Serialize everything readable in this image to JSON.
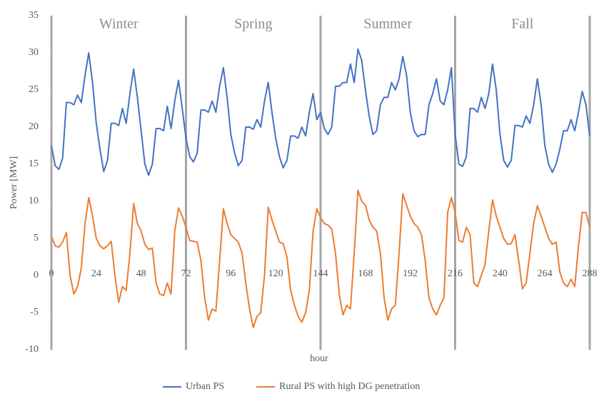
{
  "chart_data": {
    "type": "line",
    "xlabel": "hour",
    "ylabel": "Power [MW]",
    "seasons": [
      "Winter",
      "Spring",
      "Summer",
      "Fall"
    ],
    "dividers": [
      0,
      72,
      144,
      216,
      288
    ],
    "xlim": [
      0,
      288
    ],
    "xticks": [
      0,
      24,
      48,
      72,
      96,
      120,
      144,
      168,
      192,
      216,
      240,
      264,
      288
    ],
    "ylim": [
      -10,
      35
    ],
    "yticks": [
      -10,
      -5,
      0,
      5,
      10,
      15,
      20,
      25,
      30,
      35
    ],
    "x": [
      0,
      2,
      4,
      6,
      8,
      10,
      12,
      14,
      16,
      18,
      20,
      22,
      24,
      26,
      28,
      30,
      32,
      34,
      36,
      38,
      40,
      42,
      44,
      46,
      48,
      50,
      52,
      54,
      56,
      58,
      60,
      62,
      64,
      66,
      68,
      70,
      72,
      74,
      76,
      78,
      80,
      82,
      84,
      86,
      88,
      90,
      92,
      94,
      96,
      98,
      100,
      102,
      104,
      106,
      108,
      110,
      112,
      114,
      116,
      118,
      120,
      122,
      124,
      126,
      128,
      130,
      132,
      134,
      136,
      138,
      140,
      142,
      144,
      146,
      148,
      150,
      152,
      154,
      156,
      158,
      160,
      162,
      164,
      166,
      168,
      170,
      172,
      174,
      176,
      178,
      180,
      182,
      184,
      186,
      188,
      190,
      192,
      194,
      196,
      198,
      200,
      202,
      204,
      206,
      208,
      210,
      212,
      214,
      216,
      218,
      220,
      222,
      224,
      226,
      228,
      230,
      232,
      234,
      236,
      238,
      240,
      242,
      244,
      246,
      248,
      250,
      252,
      254,
      256,
      258,
      260,
      262,
      264,
      266,
      268,
      270,
      272,
      274,
      276,
      278,
      280,
      282,
      284,
      286,
      288
    ],
    "series": [
      {
        "name": "Urban PS",
        "color": "#4472c4",
        "values": [
          17.5,
          14.8,
          14.3,
          15.8,
          23.3,
          23.3,
          23,
          24.3,
          23.3,
          27,
          30,
          26,
          20.5,
          17,
          14,
          15.5,
          20.5,
          20.5,
          20.2,
          22.5,
          20.5,
          24.5,
          27.8,
          24,
          19.5,
          15,
          13.5,
          15,
          19.8,
          19.8,
          19.5,
          22.8,
          19.8,
          23.5,
          26.3,
          22.5,
          18.5,
          16,
          15.3,
          16.5,
          22.3,
          22.3,
          22,
          23.5,
          22,
          25.5,
          28,
          24,
          19,
          16.5,
          14.8,
          15.5,
          20,
          20,
          19.7,
          21,
          20,
          23.5,
          26,
          22,
          18.5,
          16,
          14.5,
          15.5,
          18.8,
          18.8,
          18.5,
          20,
          18.8,
          22,
          24.5,
          21,
          22,
          19.8,
          19,
          20,
          25.5,
          25.5,
          26,
          26,
          28.5,
          26,
          30.5,
          29,
          25,
          21.5,
          19,
          19.5,
          23,
          24,
          24,
          26,
          25,
          26.5,
          29.5,
          27,
          22,
          19.5,
          18.7,
          19,
          19,
          23,
          24.5,
          26.5,
          23.5,
          23,
          25,
          28,
          19,
          15,
          14.7,
          16,
          22.5,
          22.5,
          22,
          24,
          22.5,
          24.5,
          28.5,
          25,
          19,
          15.5,
          14.6,
          15.5,
          20.2,
          20.2,
          20,
          21.5,
          20.5,
          23,
          26.5,
          23,
          17.5,
          15,
          13.9,
          15,
          17,
          19.5,
          19.5,
          21,
          19.5,
          22,
          24.8,
          23,
          18.8
        ]
      },
      {
        "name": "Rural PS with high DG penetration",
        "color": "#ed7d31",
        "values": [
          5.3,
          4,
          3.8,
          4.5,
          5.8,
          0,
          -2.5,
          -1.5,
          1,
          7,
          10.5,
          8,
          5,
          4,
          3.6,
          4,
          4.6,
          0,
          -3.6,
          -1.5,
          -2,
          3,
          9.7,
          7,
          6,
          4.2,
          3.5,
          3.7,
          -1,
          -2.5,
          -2.7,
          -1,
          -2.5,
          6,
          9.1,
          8,
          6.5,
          4.7,
          4.6,
          4.5,
          2,
          -3,
          -6,
          -4.5,
          -4.8,
          2,
          9,
          7,
          5.5,
          5,
          4.5,
          3,
          -1,
          -4.5,
          -7,
          -5.5,
          -5,
          0,
          9.2,
          7.5,
          6,
          4.5,
          4.3,
          2.5,
          -2,
          -4,
          -5.5,
          -6.3,
          -5,
          -2,
          6,
          9,
          7.8,
          7,
          6.8,
          6.2,
          3,
          -2.5,
          -5.3,
          -4,
          -4.5,
          3,
          11.5,
          10,
          9.5,
          7.5,
          6.5,
          6,
          3,
          -3,
          -6,
          -4.5,
          -4,
          3,
          11,
          9.5,
          8,
          7,
          6.5,
          5.5,
          2,
          -3,
          -4.5,
          -5.3,
          -4,
          -3,
          8.5,
          10.5,
          8.5,
          4.7,
          4.5,
          6.5,
          5.5,
          -1,
          -1.5,
          0,
          1.5,
          6,
          10.2,
          8,
          6.5,
          5,
          4.2,
          4.3,
          5.5,
          2,
          -1.8,
          -1,
          3,
          7,
          9.4,
          8,
          6.5,
          5,
          4.2,
          4.5,
          0.5,
          -1,
          -1.5,
          -0.5,
          -1.5,
          4,
          8.5,
          8.5,
          6.5
        ]
      }
    ]
  }
}
